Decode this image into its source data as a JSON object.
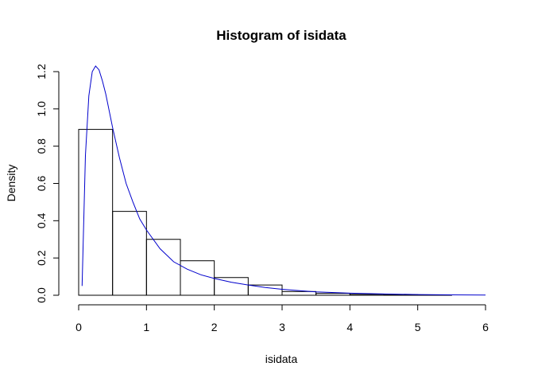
{
  "chart_data": {
    "type": "bar",
    "title": "Histogram of isidata",
    "xlabel": "isidata",
    "ylabel": "Density",
    "xlim": [
      0,
      6
    ],
    "ylim": [
      0,
      1.2
    ],
    "xticks": [
      "0",
      "1",
      "2",
      "3",
      "4",
      "5",
      "6"
    ],
    "yticks": [
      "0.0",
      "0.2",
      "0.4",
      "0.6",
      "0.8",
      "1.0",
      "1.2"
    ],
    "bins": [
      {
        "x0": 0.0,
        "x1": 0.5,
        "density": 0.89
      },
      {
        "x0": 0.5,
        "x1": 1.0,
        "density": 0.45
      },
      {
        "x0": 1.0,
        "x1": 1.5,
        "density": 0.3
      },
      {
        "x0": 1.5,
        "x1": 2.0,
        "density": 0.185
      },
      {
        "x0": 2.0,
        "x1": 2.5,
        "density": 0.095
      },
      {
        "x0": 2.5,
        "x1": 3.0,
        "density": 0.055
      },
      {
        "x0": 3.0,
        "x1": 3.5,
        "density": 0.02
      },
      {
        "x0": 3.5,
        "x1": 4.0,
        "density": 0.01
      },
      {
        "x0": 4.0,
        "x1": 4.5,
        "density": 0.005
      },
      {
        "x0": 4.5,
        "x1": 5.0,
        "density": 0.003
      },
      {
        "x0": 5.0,
        "x1": 5.5,
        "density": 0.002
      }
    ],
    "series": [
      {
        "type": "line",
        "color": "#0000cc",
        "x": [
          0.05,
          0.1,
          0.15,
          0.2,
          0.25,
          0.3,
          0.35,
          0.4,
          0.5,
          0.6,
          0.7,
          0.8,
          0.9,
          1.0,
          1.2,
          1.4,
          1.6,
          1.8,
          2.0,
          2.25,
          2.5,
          2.75,
          3.0,
          3.5,
          4.0,
          4.5,
          5.0,
          5.5,
          6.0
        ],
        "y": [
          0.05,
          0.75,
          1.07,
          1.2,
          1.23,
          1.21,
          1.15,
          1.08,
          0.9,
          0.74,
          0.6,
          0.5,
          0.41,
          0.35,
          0.25,
          0.18,
          0.14,
          0.11,
          0.09,
          0.07,
          0.055,
          0.042,
          0.032,
          0.018,
          0.011,
          0.007,
          0.004,
          0.002,
          0.001
        ]
      }
    ]
  }
}
